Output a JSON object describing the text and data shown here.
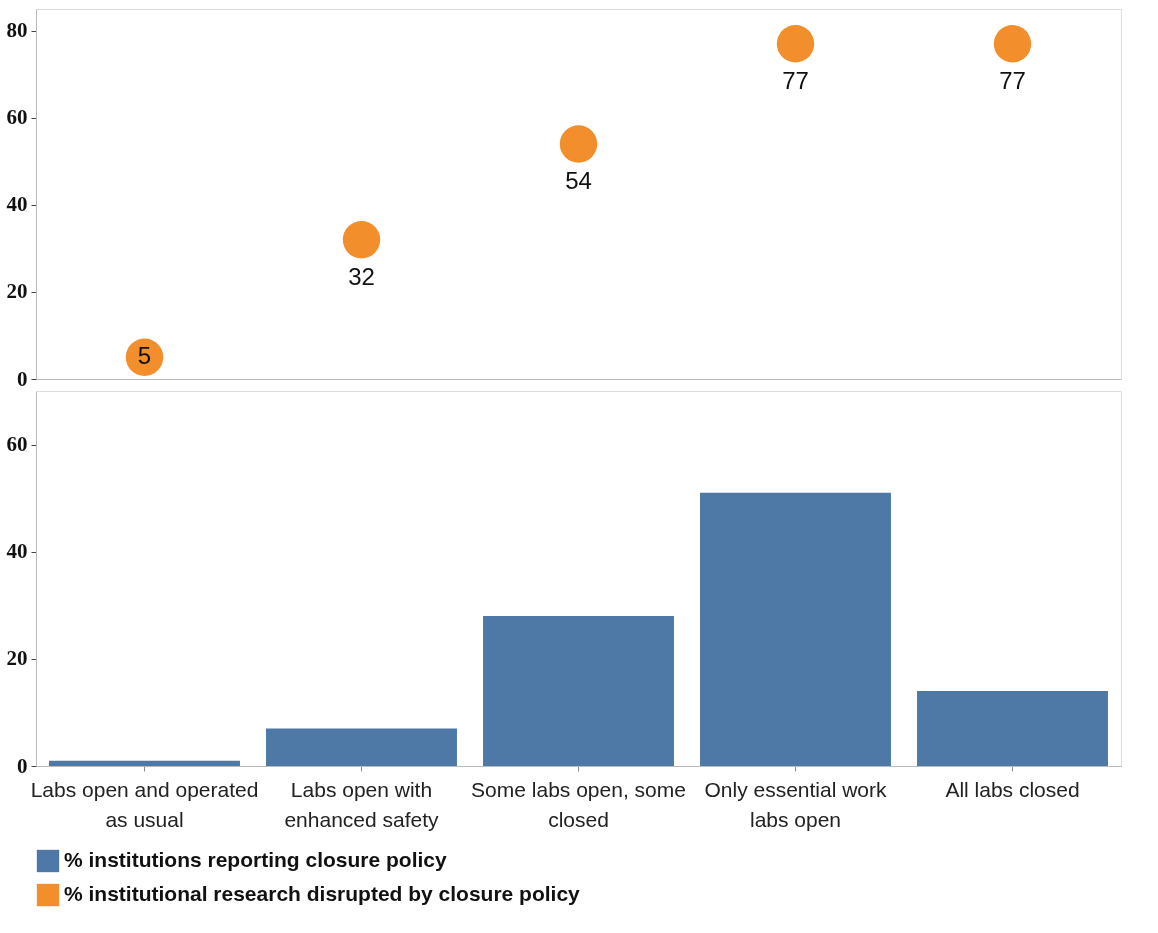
{
  "chart_data": [
    {
      "type": "scatter",
      "categories": [
        null,
        null,
        null,
        null,
        null
      ],
      "series": [
        {
          "name": "% institutional research disrupted by closure policy",
          "color": "#f28e2b",
          "values": [
            5,
            32,
            54,
            77,
            77
          ]
        }
      ],
      "ylim": [
        0,
        85
      ],
      "yticks": [
        0,
        20,
        40,
        60,
        80
      ],
      "data_labels": true,
      "tick_labels": "y",
      "marker": "circle",
      "grid": false,
      "legend": "bottom"
    },
    {
      "type": "bar",
      "categories": [
        "Labs open and operated as usual",
        "Labs open with enhanced safety",
        "Some labs open, some closed",
        "Only essential work labs open",
        "All labs closed"
      ],
      "series": [
        {
          "name": "% institutions reporting closure policy",
          "color": "#4e79a7",
          "values": [
            1,
            7,
            28,
            51,
            14
          ]
        }
      ],
      "ylim": [
        0,
        70
      ],
      "yticks": [
        0,
        20,
        40,
        60
      ],
      "grid": false,
      "legend": "bottom"
    }
  ]
}
